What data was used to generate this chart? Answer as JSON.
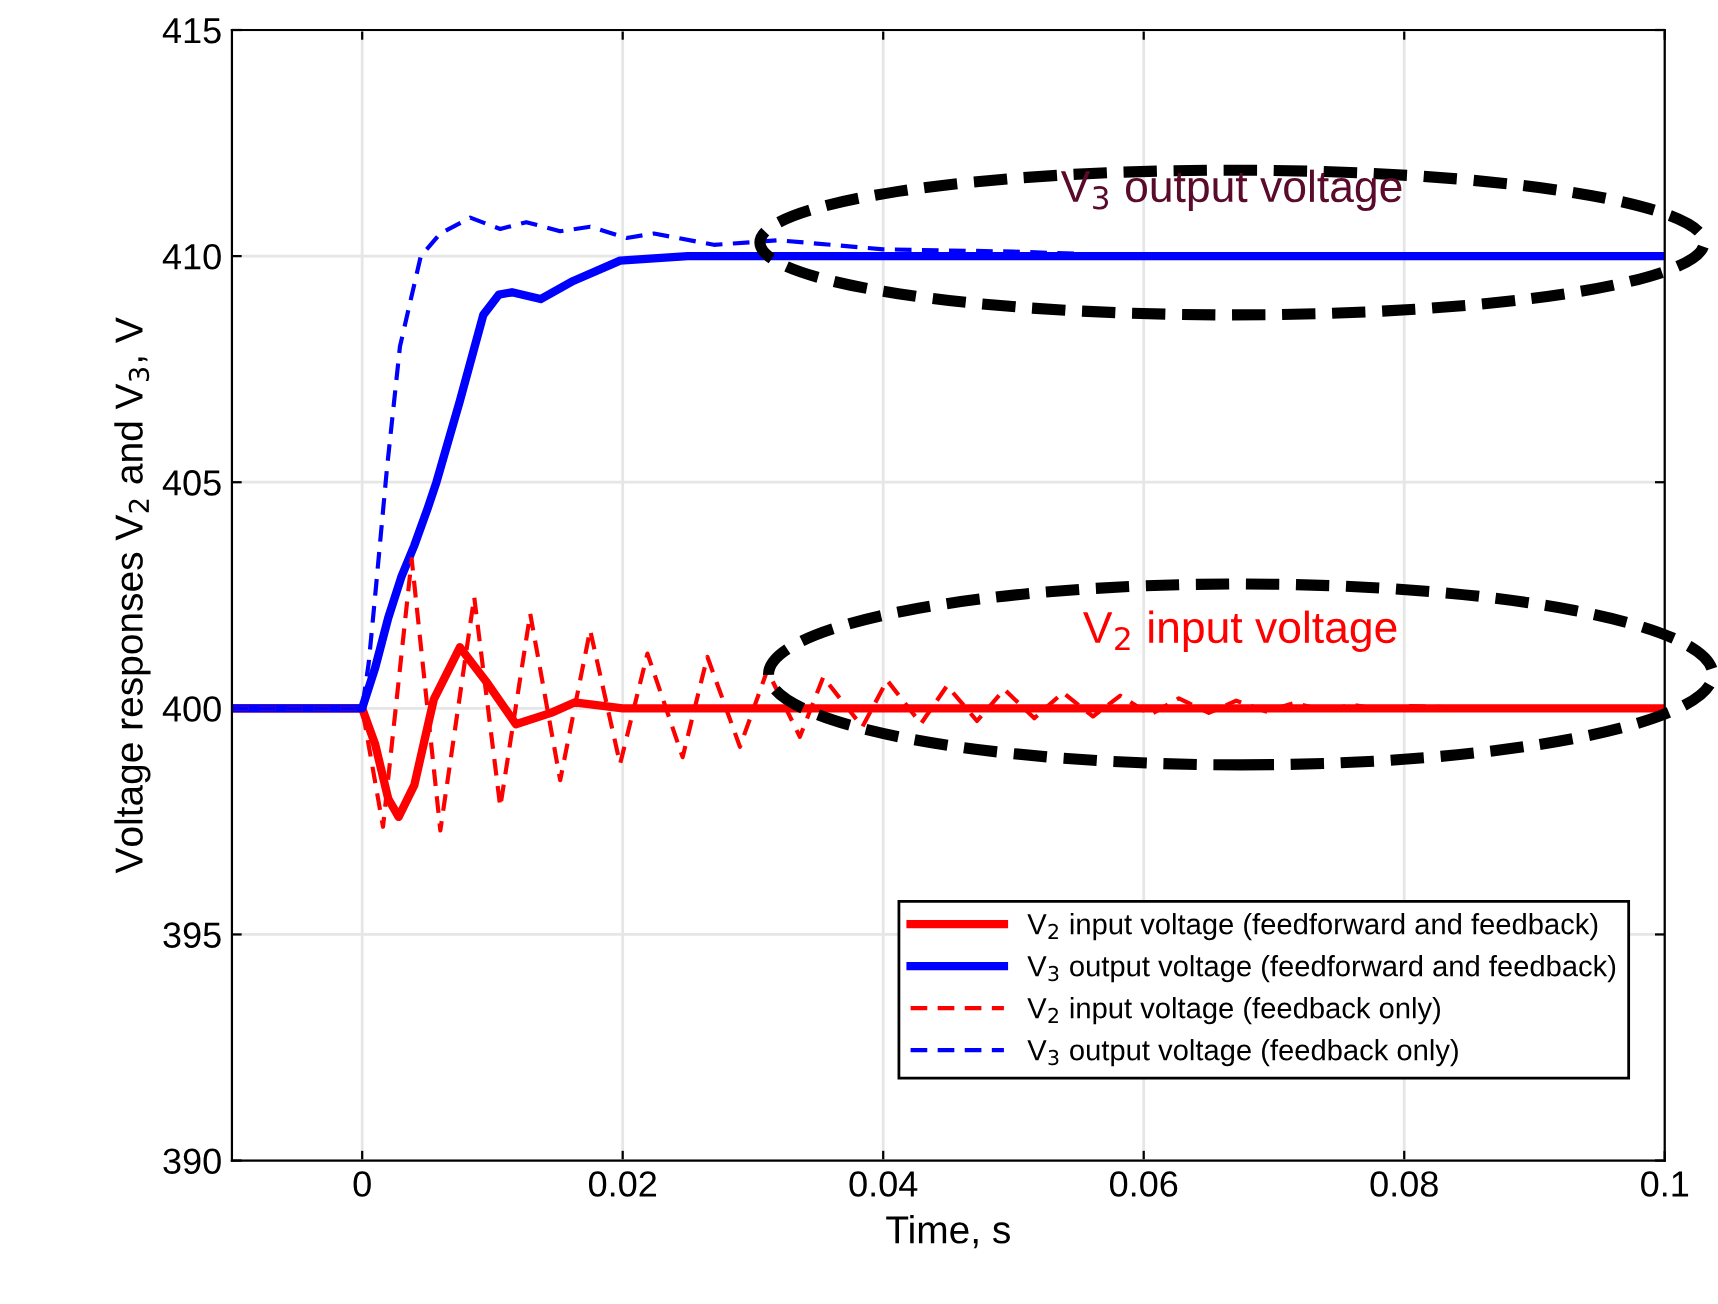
{
  "chart_data": {
    "type": "line",
    "xlabel": "Time, s",
    "ylabel": "Voltage responses V$_{2}$ and V$_{3}$, V",
    "xlim": [
      -0.01,
      0.1
    ],
    "xticks": [
      0,
      0.02,
      0.04,
      0.06,
      0.08,
      0.1
    ],
    "ylim": [
      390,
      415
    ],
    "yticks": [
      390,
      395,
      400,
      405,
      410,
      415
    ],
    "grid": true,
    "legend": "bottom right",
    "series": [
      {
        "name": "V$_{2}$ input voltage (feedforward and feedback)",
        "color": "#ff0000",
        "line_style": "solid",
        "x": [
          -0.01,
          0,
          0.001,
          0.002,
          0.0028,
          0.004,
          0.0055,
          0.0075,
          0.0095,
          0.0118,
          0.0145,
          0.0163,
          0.02,
          0.1
        ],
        "values": [
          400,
          400,
          399.2,
          398.0,
          397.6,
          398.3,
          400.2,
          401.35,
          400.6,
          399.65,
          399.9,
          400.13,
          400.0,
          400
        ]
      },
      {
        "name": "V$_{3}$ output voltage (feedforward and feedback)",
        "color": "#0000ff",
        "line_style": "solid",
        "x": [
          -0.01,
          0,
          0.001,
          0.002,
          0.003,
          0.004,
          0.005,
          0.0057,
          0.0075,
          0.0093,
          0.0105,
          0.0115,
          0.0137,
          0.0162,
          0.0198,
          0.025,
          0.1
        ],
        "values": [
          400,
          400,
          400.9,
          402.0,
          402.9,
          403.6,
          404.4,
          405.0,
          406.8,
          408.7,
          409.15,
          409.2,
          409.05,
          409.45,
          409.9,
          410.0,
          410
        ]
      },
      {
        "name": "V$_{2}$ input voltage (feedback only)",
        "color": "#ff0000",
        "line_style": "dashed",
        "x": [
          -0.01,
          0,
          0.0016,
          0.0038,
          0.006,
          0.0086,
          0.0106,
          0.0129,
          0.0152,
          0.0175,
          0.0198,
          0.0219,
          0.0246,
          0.0265,
          0.029,
          0.0311,
          0.0336,
          0.0354,
          0.0384,
          0.0403,
          0.0429,
          0.0449,
          0.0472,
          0.0493,
          0.0516,
          0.0538,
          0.0561,
          0.0582,
          0.0605,
          0.0627,
          0.065,
          0.0671,
          0.0694,
          0.0716,
          0.0739,
          0.076,
          0.0783,
          0.0805,
          0.086,
          0.1
        ],
        "values": [
          400,
          400,
          397.38,
          403.3,
          397.3,
          402.46,
          397.82,
          402.09,
          398.41,
          401.73,
          398.77,
          401.21,
          398.92,
          401.14,
          399.15,
          400.84,
          399.37,
          400.69,
          399.59,
          400.62,
          399.66,
          400.5,
          399.72,
          400.42,
          399.78,
          400.35,
          399.82,
          400.28,
          399.86,
          400.22,
          399.9,
          400.17,
          399.93,
          400.12,
          399.95,
          400.08,
          399.97,
          400.05,
          400,
          400
        ]
      },
      {
        "name": "V$_{3}$ output voltage (feedback only)",
        "color": "#0000ff",
        "line_style": "dashed",
        "x": [
          -0.01,
          0,
          0.0005,
          0.001,
          0.0019,
          0.0029,
          0.0045,
          0.006,
          0.0083,
          0.0106,
          0.0126,
          0.0152,
          0.0175,
          0.0203,
          0.0224,
          0.027,
          0.032,
          0.04,
          0.05,
          0.06,
          0.1
        ],
        "values": [
          400,
          400,
          401,
          402.5,
          405.3,
          408.0,
          410.0,
          410.5,
          410.85,
          410.6,
          410.75,
          410.55,
          410.65,
          410.4,
          410.5,
          410.25,
          410.35,
          410.15,
          410.1,
          410.0,
          410
        ]
      }
    ],
    "annotations": [
      "V$_{3}$ output voltage",
      "V$_{2}$ input voltage"
    ]
  }
}
